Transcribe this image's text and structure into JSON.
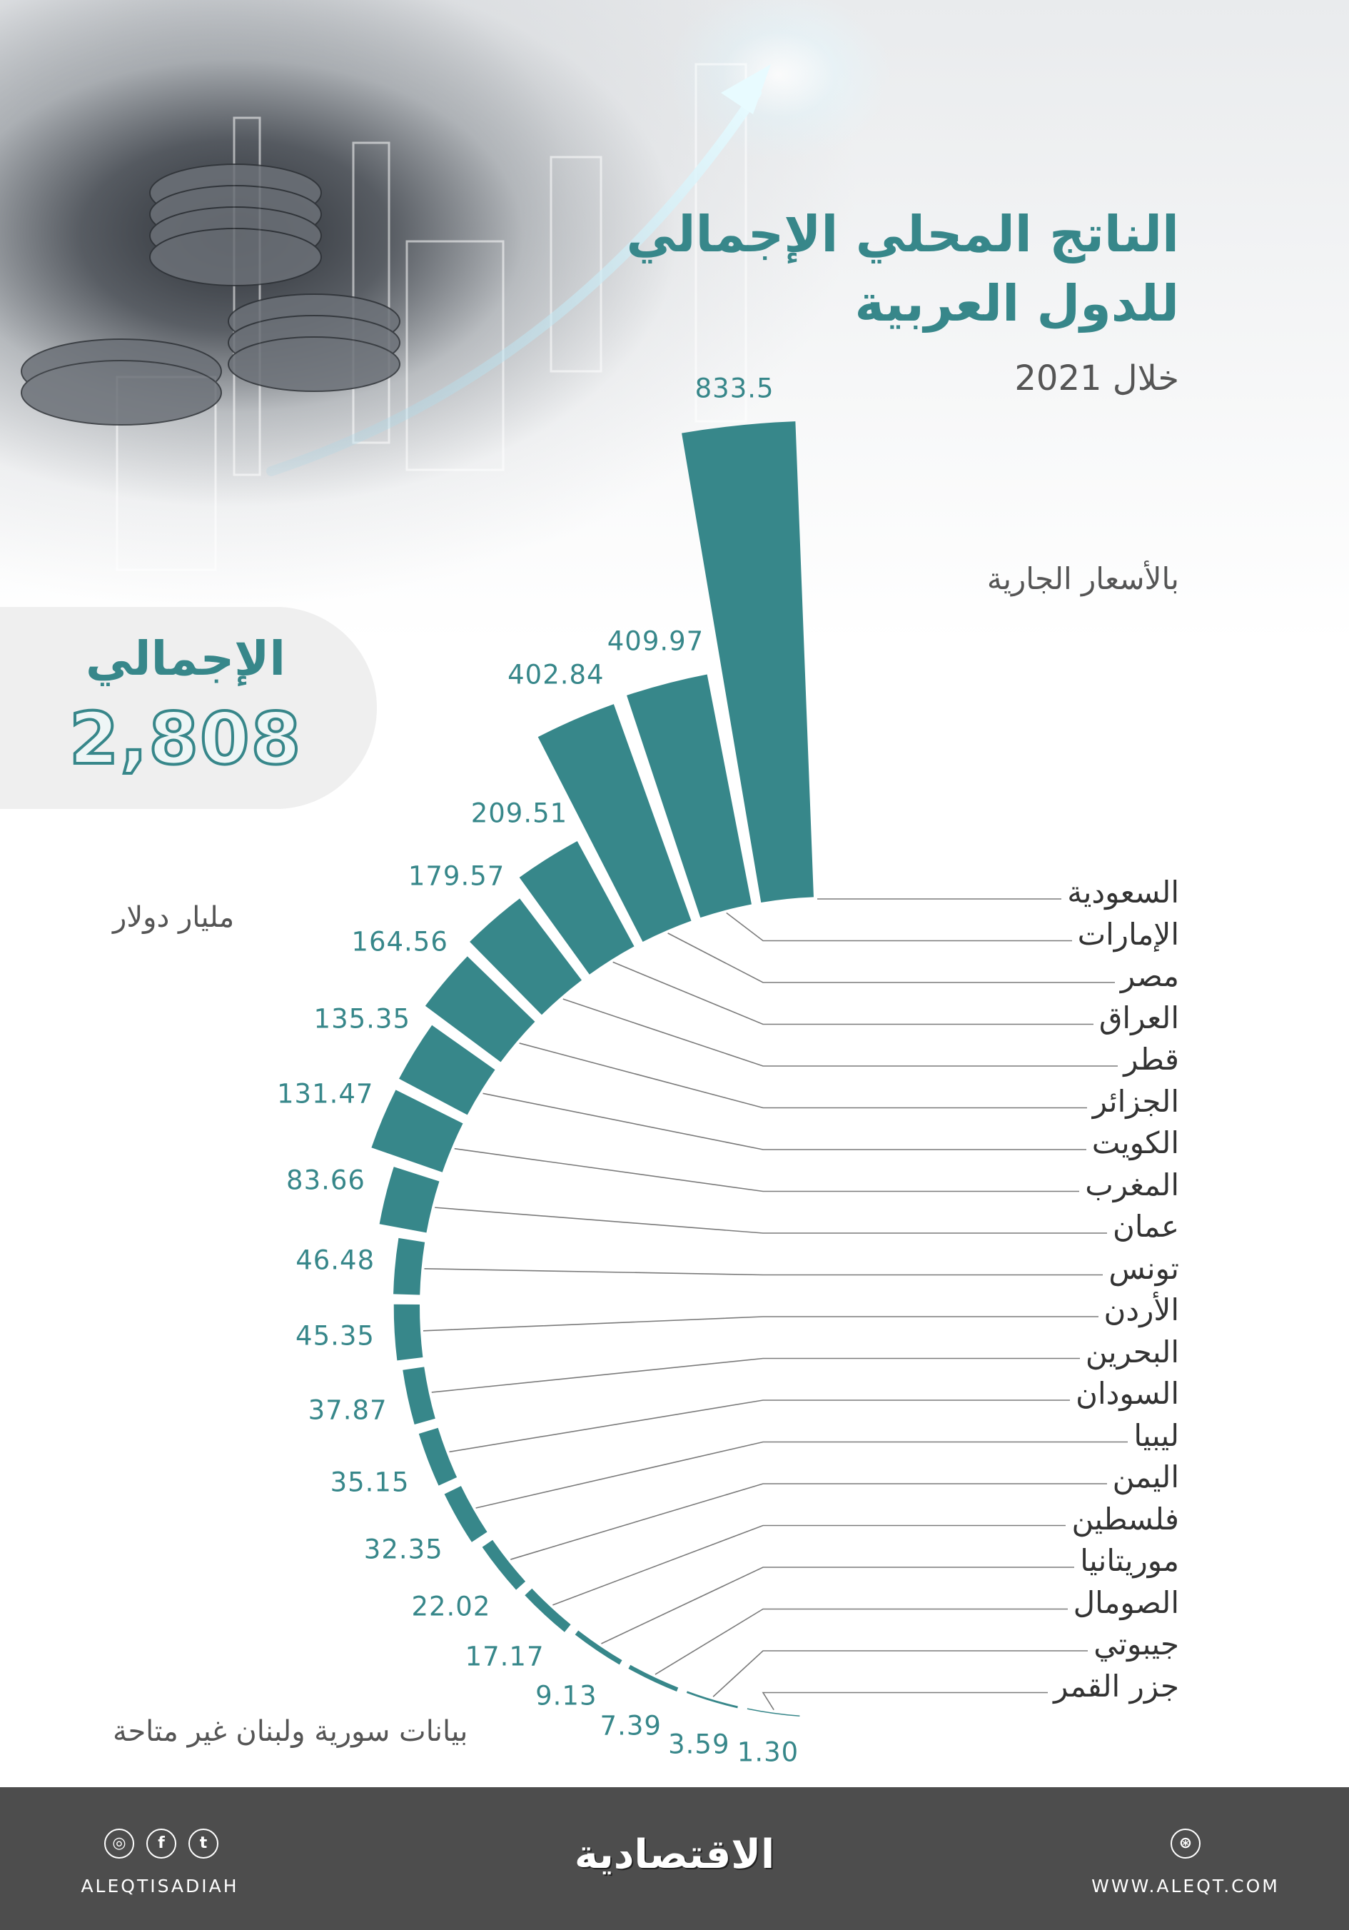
{
  "header": {
    "title_line1": "الناتج المحلي الإجمالي",
    "title_line2": "للدول العربية",
    "period": "خلال 2021",
    "price_basis": "بالأسعار الجارية"
  },
  "total": {
    "label": "الإجمالي",
    "value": "2,808"
  },
  "unit": "مليار دولار",
  "note": "بيانات سورية ولبنان غير متاحة",
  "colors": {
    "bar": "#37878a",
    "leader": "#7a7a7a",
    "footer": "#4d4d4d"
  },
  "chart_data": {
    "type": "bar",
    "layout": "radial",
    "categories": [
      "السعودية",
      "الإمارات",
      "مصر",
      "العراق",
      "قطر",
      "الجزائر",
      "الكويت",
      "المغرب",
      "عمان",
      "تونس",
      "الأردن",
      "البحرين",
      "السودان",
      "ليبيا",
      "اليمن",
      "فلسطين",
      "موريتانيا",
      "الصومال",
      "جيبوتي",
      "جزر القمر"
    ],
    "values": [
      833.5,
      409.97,
      402.84,
      209.51,
      179.57,
      164.56,
      135.35,
      131.47,
      83.66,
      46.48,
      45.35,
      37.87,
      35.15,
      32.35,
      22.02,
      17.17,
      9.13,
      7.39,
      3.59,
      1.3
    ],
    "value_labels": [
      "833.5",
      "409.97",
      "402.84",
      "209.51",
      "179.57",
      "164.56",
      "135.35",
      "131.47",
      "83.66",
      "46.48",
      "45.35",
      "37.87",
      "35.15",
      "32.35",
      "22.02",
      "17.17",
      "9.13",
      "7.39",
      "3.59",
      "1.30"
    ],
    "title": "الناتج المحلي الإجمالي للدول العربية",
    "ylabel": "مليار دولار",
    "grid": false
  },
  "footer": {
    "social_handle": "ALEQTISADIAH",
    "brand": "الاقتصادية",
    "website": "WWW.ALEQT.COM",
    "icons": [
      "instagram-icon",
      "facebook-icon",
      "twitter-icon",
      "globe-icon"
    ]
  }
}
